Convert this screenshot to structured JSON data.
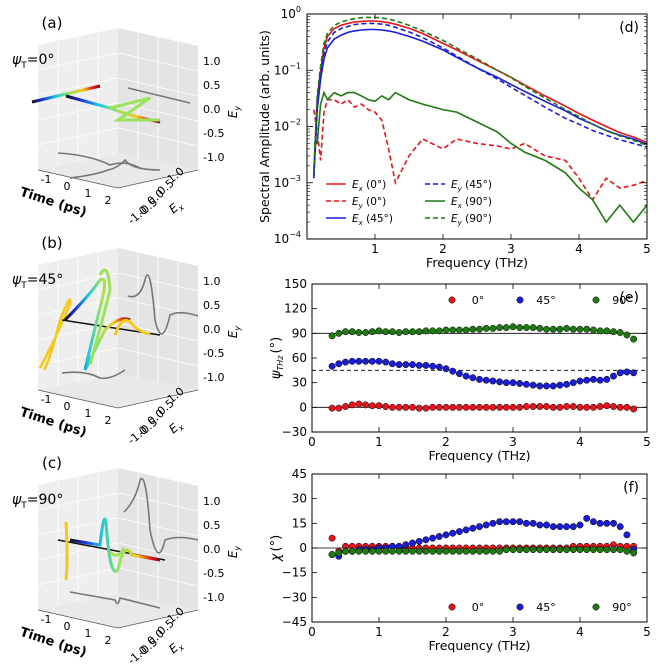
{
  "colors": {
    "red": "#e8141b",
    "blue": "#1a1cd6",
    "green": "#1f7a12",
    "gray": "#777777",
    "cyan": "#19c8e0",
    "yellow": "#f5c814",
    "lightgreen": "#9be35a"
  },
  "panels_3d": [
    {
      "label": "(a)",
      "psi_label": "ψT=0°",
      "ey_ticks": [
        "1.0",
        "0.5",
        "0.0",
        "-0.5",
        "-1.0"
      ],
      "ex_ticks": [
        "1.0",
        "0.5",
        "0.0",
        "-0.5",
        "-1.0"
      ],
      "time_ticks": [
        "-1",
        "0",
        "1",
        "2"
      ],
      "ey_label": "Ey",
      "ex_label": "Ex",
      "time_label": "Time (ps)"
    },
    {
      "label": "(b)",
      "psi_label": "ψT=45°",
      "ey_ticks": [
        "1.0",
        "0.5",
        "0.0",
        "-0.5",
        "-1.0"
      ],
      "ex_ticks": [
        "1.0",
        "0.5",
        "0.0",
        "-0.5",
        "-1.0"
      ],
      "time_ticks": [
        "-1",
        "0",
        "1",
        "2"
      ],
      "ey_label": "Ey",
      "ex_label": "Ex",
      "time_label": "Time (ps)"
    },
    {
      "label": "(c)",
      "psi_label": "ψT=90°",
      "ey_ticks": [
        "1.0",
        "0.5",
        "0.0",
        "-0.5",
        "-1.0"
      ],
      "ex_ticks": [
        "1.0",
        "0.5",
        "0.0",
        "-0.5",
        "-1.0"
      ],
      "time_ticks": [
        "-1",
        "0",
        "1",
        "2"
      ],
      "ey_label": "Ey",
      "ex_label": "Ex",
      "time_label": "Time (ps)"
    }
  ],
  "chart_data": [
    {
      "id": "d",
      "type": "line",
      "panel_label": "(d)",
      "xlabel": "Frequency (THz)",
      "ylabel": "Spectral Amplitude (arb. units)",
      "yscale": "log",
      "xlim": [
        0,
        5
      ],
      "ylim": [
        0.0001,
        1
      ],
      "xticks": [
        "1",
        "2",
        "3",
        "4",
        "5"
      ],
      "yticks": [
        "10⁻⁴",
        "10⁻³",
        "10⁻²",
        "10⁻¹",
        "10⁰"
      ],
      "yticklabels": [
        {
          "base": "10",
          "exp": "−4"
        },
        {
          "base": "10",
          "exp": "−3"
        },
        {
          "base": "10",
          "exp": "−2"
        },
        {
          "base": "10",
          "exp": "−1"
        },
        {
          "base": "10",
          "exp": "0"
        }
      ],
      "x": [
        0.1,
        0.15,
        0.2,
        0.25,
        0.3,
        0.4,
        0.5,
        0.6,
        0.7,
        0.8,
        0.9,
        1.0,
        1.1,
        1.2,
        1.3,
        1.5,
        1.7,
        2.0,
        2.2,
        2.5,
        2.8,
        3.0,
        3.2,
        3.5,
        3.8,
        4.0,
        4.2,
        4.4,
        4.6,
        4.8,
        5.0
      ],
      "series": [
        {
          "name": "Ex (0°)",
          "legend_main": "E",
          "legend_sub": "x",
          "legend_tail": " (0°)",
          "color": "red",
          "style": "solid",
          "values": [
            0.0015,
            0.03,
            0.1,
            0.25,
            0.4,
            0.55,
            0.63,
            0.68,
            0.72,
            0.74,
            0.75,
            0.75,
            0.73,
            0.7,
            0.66,
            0.56,
            0.45,
            0.3,
            0.23,
            0.15,
            0.1,
            0.075,
            0.055,
            0.035,
            0.023,
            0.017,
            0.013,
            0.01,
            0.0078,
            0.0065,
            0.0052
          ]
        },
        {
          "name": "Ey (0°)",
          "legend_main": "E",
          "legend_sub": "y",
          "legend_tail": " (0°)",
          "color": "red",
          "style": "dashed",
          "values": [
            0.02,
            0.008,
            0.0025,
            0.018,
            0.03,
            0.03,
            0.025,
            0.03,
            0.022,
            0.025,
            0.02,
            0.018,
            0.013,
            0.004,
            0.001,
            0.003,
            0.006,
            0.004,
            0.006,
            0.005,
            0.0045,
            0.004,
            0.005,
            0.003,
            0.0025,
            0.0012,
            0.0005,
            0.0012,
            0.0008,
            0.0009,
            0.0011
          ]
        },
        {
          "name": "Ex (45°)",
          "legend_main": "E",
          "legend_sub": "x",
          "legend_tail": " (45°)",
          "color": "blue",
          "style": "solid",
          "values": [
            0.0012,
            0.02,
            0.07,
            0.16,
            0.25,
            0.36,
            0.42,
            0.47,
            0.5,
            0.52,
            0.53,
            0.53,
            0.52,
            0.5,
            0.47,
            0.4,
            0.33,
            0.23,
            0.17,
            0.11,
            0.075,
            0.056,
            0.042,
            0.028,
            0.019,
            0.014,
            0.011,
            0.0085,
            0.007,
            0.006,
            0.0048
          ]
        },
        {
          "name": "Ey (45°)",
          "legend_main": "E",
          "legend_sub": "y",
          "legend_tail": " (45°)",
          "color": "blue",
          "style": "dashed",
          "values": [
            0.0013,
            0.025,
            0.08,
            0.2,
            0.32,
            0.47,
            0.55,
            0.6,
            0.65,
            0.67,
            0.68,
            0.68,
            0.66,
            0.63,
            0.58,
            0.48,
            0.38,
            0.25,
            0.18,
            0.11,
            0.07,
            0.05,
            0.036,
            0.022,
            0.014,
            0.011,
            0.0085,
            0.007,
            0.0058,
            0.005,
            0.0043
          ]
        },
        {
          "name": "Ex (90°)",
          "legend_main": "E",
          "legend_sub": "x",
          "legend_tail": " (90°)",
          "color": "green",
          "style": "solid",
          "values": [
            0.005,
            0.005,
            0.025,
            0.04,
            0.03,
            0.04,
            0.035,
            0.04,
            0.04,
            0.035,
            0.03,
            0.028,
            0.035,
            0.03,
            0.04,
            0.03,
            0.025,
            0.02,
            0.018,
            0.012,
            0.008,
            0.005,
            0.0035,
            0.0025,
            0.0015,
            0.0008,
            0.0005,
            0.0002,
            0.0004,
            0.0002,
            0.0004
          ]
        },
        {
          "name": "Ey (90°)",
          "legend_main": "E",
          "legend_sub": "y",
          "legend_tail": " (90°)",
          "color": "green",
          "style": "dashed",
          "values": [
            0.0015,
            0.035,
            0.12,
            0.3,
            0.45,
            0.62,
            0.72,
            0.78,
            0.83,
            0.86,
            0.87,
            0.87,
            0.85,
            0.81,
            0.76,
            0.63,
            0.5,
            0.34,
            0.25,
            0.16,
            0.1,
            0.074,
            0.052,
            0.032,
            0.02,
            0.015,
            0.011,
            0.0085,
            0.0068,
            0.0057,
            0.0046
          ]
        }
      ]
    },
    {
      "id": "e",
      "type": "scatter",
      "panel_label": "(e)",
      "xlabel": "Frequency (THz)",
      "ylabel_main": "ψ",
      "ylabel_sub": "THz",
      "ylabel_tail": "(°)",
      "xlim": [
        0,
        5
      ],
      "ylim": [
        -30,
        150
      ],
      "xticks": [
        "0",
        "1",
        "2",
        "3",
        "4",
        "5"
      ],
      "yticks": [
        "−30",
        "0",
        "30",
        "60",
        "90",
        "120",
        "150"
      ],
      "hlines": [
        {
          "y": 90,
          "style": "solid"
        },
        {
          "y": 45,
          "style": "dashed"
        },
        {
          "y": 0,
          "style": "solid"
        }
      ],
      "x": [
        0.3,
        0.4,
        0.5,
        0.6,
        0.7,
        0.8,
        0.9,
        1.0,
        1.1,
        1.2,
        1.3,
        1.4,
        1.5,
        1.6,
        1.7,
        1.8,
        1.9,
        2.0,
        2.1,
        2.2,
        2.3,
        2.4,
        2.5,
        2.6,
        2.7,
        2.8,
        2.9,
        3.0,
        3.1,
        3.2,
        3.3,
        3.4,
        3.5,
        3.6,
        3.7,
        3.8,
        3.9,
        4.0,
        4.1,
        4.2,
        4.3,
        4.4,
        4.5,
        4.6,
        4.7,
        4.8
      ],
      "series": [
        {
          "name": "0°",
          "color": "red",
          "values": [
            -1,
            -1,
            1,
            3,
            4,
            3,
            2,
            2,
            1,
            0,
            0,
            0,
            0,
            -1,
            -1,
            0,
            0,
            0,
            0,
            0,
            0,
            0,
            0,
            0,
            0,
            0,
            0,
            0,
            0,
            1,
            1,
            1,
            1,
            0,
            0,
            1,
            1,
            0,
            0,
            0,
            1,
            2,
            1,
            0,
            0,
            -2
          ]
        },
        {
          "name": "45°",
          "color": "blue",
          "values": [
            50,
            53,
            55,
            56,
            56,
            56,
            56,
            56,
            55,
            53,
            52,
            52,
            52,
            51,
            51,
            50,
            49,
            47,
            44,
            41,
            38,
            36,
            34,
            33,
            32,
            31,
            30,
            30,
            29,
            28,
            27,
            26,
            26,
            26,
            27,
            28,
            30,
            32,
            33,
            34,
            33,
            34,
            38,
            42,
            43,
            42
          ]
        },
        {
          "name": "90°",
          "color": "green",
          "values": [
            87,
            90,
            92,
            92,
            91,
            91,
            92,
            93,
            92,
            92,
            91,
            92,
            92,
            92,
            93,
            93,
            93,
            94,
            94,
            94,
            94,
            95,
            95,
            96,
            96,
            97,
            97,
            98,
            97,
            97,
            97,
            96,
            95,
            95,
            95,
            96,
            95,
            95,
            95,
            94,
            93,
            93,
            92,
            91,
            88,
            83
          ]
        }
      ],
      "legend": [
        "0°",
        "45°",
        "90°"
      ]
    },
    {
      "id": "f",
      "type": "scatter",
      "panel_label": "(f)",
      "xlabel": "Frequency (THz)",
      "ylabel_main": "χ",
      "ylabel_tail": "(°)",
      "xlim": [
        0,
        5
      ],
      "ylim": [
        -45,
        45
      ],
      "xticks": [
        "0",
        "1",
        "2",
        "3",
        "4",
        "5"
      ],
      "yticks": [
        "−45",
        "−30",
        "−15",
        "0",
        "15",
        "30",
        "45"
      ],
      "hlines": [
        {
          "y": 0,
          "style": "solid"
        }
      ],
      "x": [
        0.3,
        0.4,
        0.5,
        0.6,
        0.7,
        0.8,
        0.9,
        1.0,
        1.1,
        1.2,
        1.3,
        1.4,
        1.5,
        1.6,
        1.7,
        1.8,
        1.9,
        2.0,
        2.1,
        2.2,
        2.3,
        2.4,
        2.5,
        2.6,
        2.7,
        2.8,
        2.9,
        3.0,
        3.1,
        3.2,
        3.3,
        3.4,
        3.5,
        3.6,
        3.7,
        3.8,
        3.9,
        4.0,
        4.1,
        4.2,
        4.3,
        4.4,
        4.5,
        4.6,
        4.7,
        4.8
      ],
      "series": [
        {
          "name": "0°",
          "color": "red",
          "values": [
            6,
            -2,
            1,
            1,
            1,
            1,
            1,
            1,
            1,
            1,
            0,
            0,
            0,
            0,
            0,
            0,
            0,
            0,
            0,
            0,
            0,
            0,
            0,
            0,
            0,
            0,
            0,
            0,
            0,
            0,
            0,
            0,
            0,
            0,
            0,
            0,
            1,
            1,
            1,
            1,
            1,
            1,
            2,
            1,
            1,
            1
          ]
        },
        {
          "name": "45°",
          "color": "blue",
          "values": [
            -4,
            -5,
            -2,
            -2,
            -1,
            -1,
            -1,
            0,
            0,
            1,
            1,
            2,
            3,
            4,
            5,
            6,
            7,
            8,
            9,
            10,
            11,
            12,
            13,
            14,
            15,
            16,
            16,
            16,
            16,
            15,
            15,
            14,
            14,
            13,
            13,
            13,
            13,
            14,
            18,
            16,
            15,
            15,
            15,
            13,
            8,
            -1
          ]
        },
        {
          "name": "90°",
          "color": "green",
          "values": [
            -4,
            -3,
            -2,
            -2,
            -2,
            -2,
            -2,
            -2,
            -2,
            -2,
            -2,
            -2,
            -2,
            -2,
            -2,
            -2,
            -2,
            -2,
            -2,
            -2,
            -2,
            -2,
            -2,
            -2,
            -2,
            -2,
            -1,
            -1,
            -1,
            -1,
            -1,
            -1,
            -1,
            -1,
            -1,
            -1,
            -1,
            -1,
            -1,
            -1,
            -1,
            -1,
            -1,
            -1,
            -2,
            -3
          ]
        }
      ],
      "legend": [
        "0°",
        "45°",
        "90°"
      ]
    }
  ]
}
